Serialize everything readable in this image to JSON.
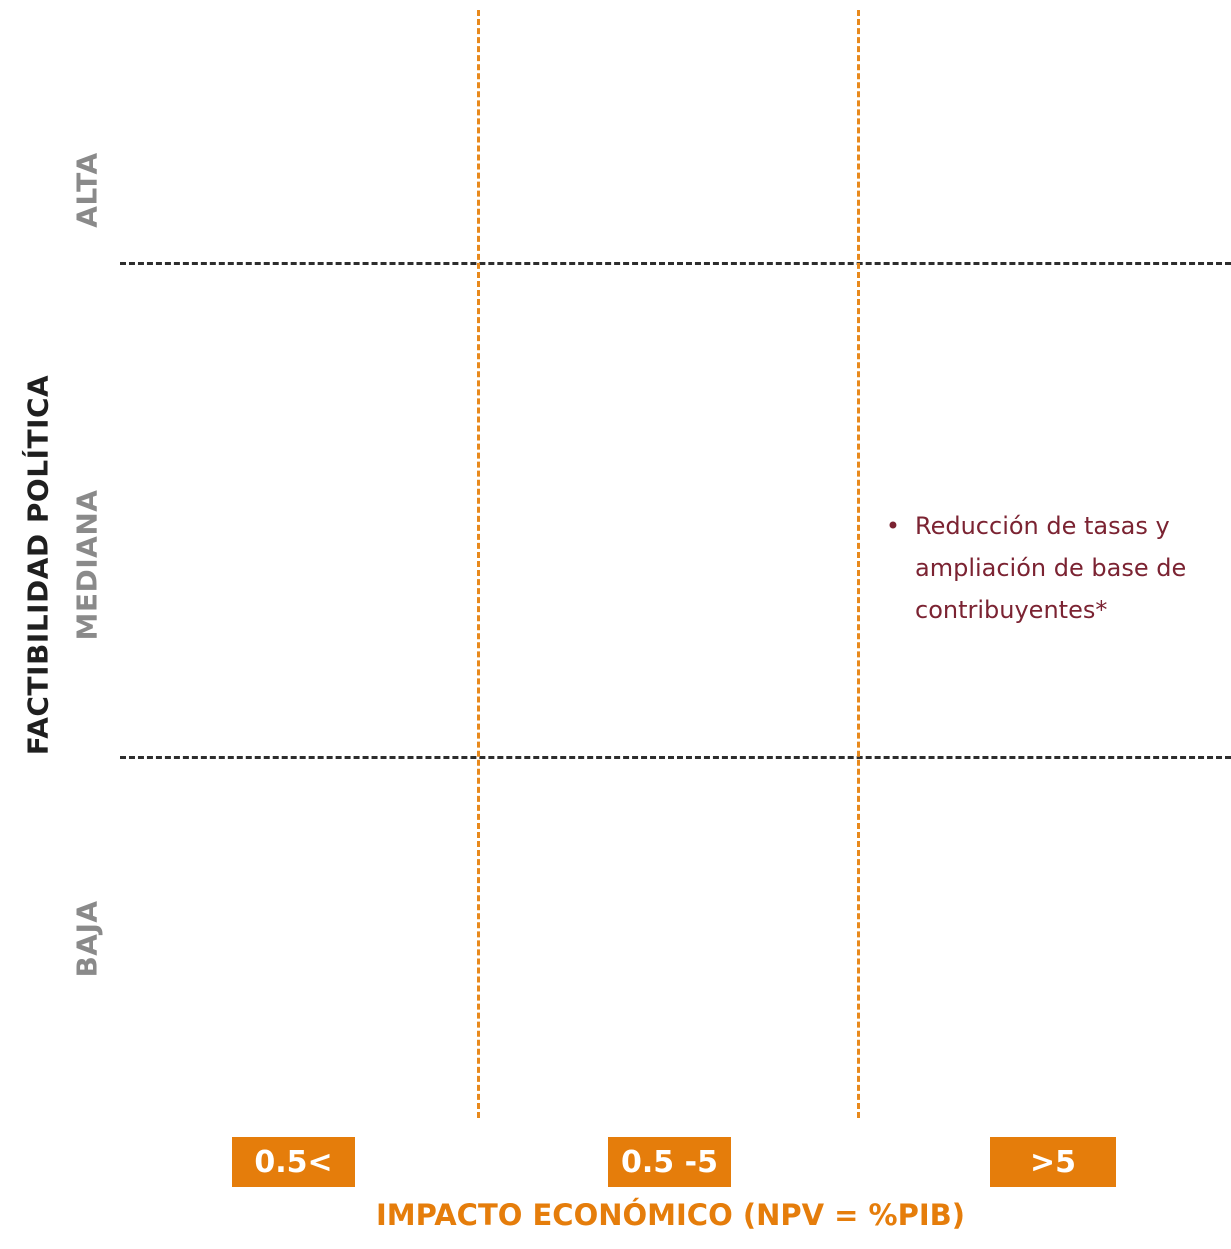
{
  "y_axis": {
    "title": "FACTIBILIDAD POLÍTICA",
    "levels": [
      "ALTA",
      "MEDIANA",
      "BAJA"
    ]
  },
  "x_axis": {
    "title": "IMPACTO ECONÓMICO (NPV = %PIB)",
    "categories": [
      "0.5<",
      "0.5 -5",
      ">5"
    ]
  },
  "cells": {
    "mediana_gt5": {
      "bullet": "•",
      "text": "Reducción de tasas y ampliación de base de contribuyentes*"
    }
  },
  "colors": {
    "accent": "#e57d0b",
    "vertical_dividers": "#e8891c",
    "horizontal_dividers": "#2d2d2d",
    "level_labels": "#8a8a8a",
    "note_text": "#7b2332"
  }
}
